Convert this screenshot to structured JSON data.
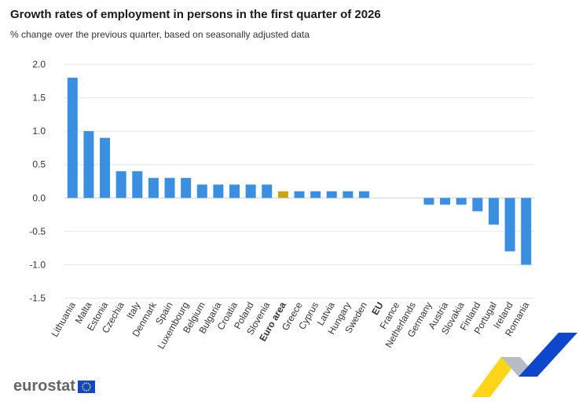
{
  "title": "Growth rates of employment in persons in the first quarter of 2026",
  "subtitle": "% change over the previous quarter, based on seasonally adjusted data",
  "brand": {
    "name": "eurostat",
    "flag_icon": "eu-flag-icon",
    "decoration_icon": "eurostat-chevron-icon"
  },
  "colors": {
    "bar": "#3b8fe0",
    "highlight": "#c9a51c",
    "grid": "#e4e4e4",
    "text": "#333333",
    "logo_grey": "#666666",
    "eu_blue": "#0e47cb",
    "eu_yellow": "#ffd617"
  },
  "chart_data": {
    "type": "bar",
    "title": "Growth rates of employment in persons in the first quarter of 2026",
    "subtitle": "% change over the previous quarter, based on seasonally adjusted data",
    "xlabel": "",
    "ylabel": "",
    "ylim": [
      -1.5,
      2.0
    ],
    "yticks": [
      2.0,
      1.5,
      1.0,
      0.5,
      0.0,
      -0.5,
      -1.0,
      -1.5
    ],
    "ytick_labels": [
      "2.0",
      "1.5",
      "1.0",
      "0.5",
      "0.0",
      "-0.5",
      "-1.0",
      "-1.5"
    ],
    "grid": true,
    "legend": "none",
    "categories": [
      "Lithuania",
      "Malta",
      "Estonia",
      "Czechia",
      "Italy",
      "Denmark",
      "Spain",
      "Luxembourg",
      "Belgium",
      "Bulgaria",
      "Croatia",
      "Poland",
      "Slovenia",
      "Euro area",
      "Greece",
      "Cyprus",
      "Latvia",
      "Hungary",
      "Sweden",
      "EU",
      "France",
      "Netherlands",
      "Germany",
      "Austria",
      "Slovakia",
      "Finland",
      "Portugal",
      "Ireland",
      "Romania"
    ],
    "values": [
      1.8,
      1.0,
      0.9,
      0.4,
      0.4,
      0.3,
      0.3,
      0.3,
      0.2,
      0.2,
      0.2,
      0.2,
      0.2,
      0.1,
      0.1,
      0.1,
      0.1,
      0.1,
      0.1,
      0.0,
      0.0,
      0.0,
      -0.1,
      -0.1,
      -0.1,
      -0.2,
      -0.4,
      -0.8,
      -1.0
    ],
    "highlighted": [
      "Euro area"
    ],
    "bold_categories": [
      "Euro area",
      "EU"
    ]
  }
}
